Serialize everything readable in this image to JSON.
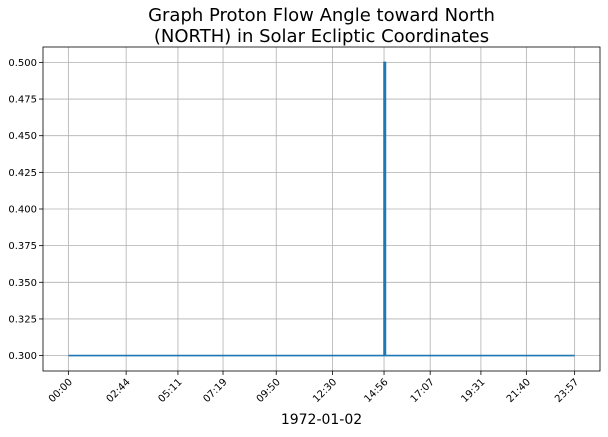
{
  "chart_data": {
    "type": "line",
    "title_lines": [
      "Graph Proton Flow Angle toward North",
      "(NORTH) in Solar Ecliptic Coordinates"
    ],
    "xlabel": "1972-01-02",
    "ylabel": "",
    "x_tick_labels": [
      "00:00",
      "02:44",
      "05:11",
      "07:19",
      "09:50",
      "12:30",
      "14:56",
      "17:07",
      "19:31",
      "21:40",
      "23:57"
    ],
    "x_tick_minutes": [
      0,
      164,
      311,
      439,
      590,
      750,
      896,
      1027,
      1171,
      1300,
      1437
    ],
    "y_tick_labels": [
      "0.300",
      "0.325",
      "0.350",
      "0.375",
      "0.400",
      "0.425",
      "0.450",
      "0.475",
      "0.500"
    ],
    "y_ticks": [
      0.3,
      0.325,
      0.35,
      0.375,
      0.4,
      0.425,
      0.45,
      0.475,
      0.5
    ],
    "ylim": [
      0.2895,
      0.5105
    ],
    "xlim": [
      -72,
      1509
    ],
    "grid": true,
    "series": [
      {
        "color": "#1f77b4",
        "x": [
          "00:00",
          "14:56",
          "14:56",
          "15:00",
          "15:00",
          "23:57"
        ],
        "x_minutes": [
          0,
          896,
          896,
          900,
          900,
          1437
        ],
        "y": [
          0.3,
          0.3,
          0.5,
          0.5,
          0.3,
          0.3
        ]
      }
    ]
  }
}
